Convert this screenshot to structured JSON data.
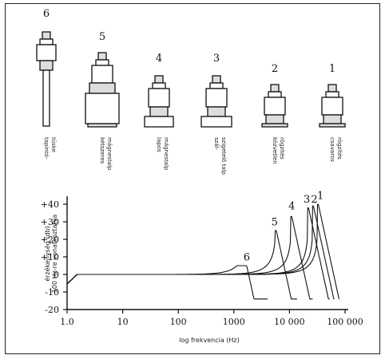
{
  "mountings": [
    {
      "number": "6",
      "caption": [
        "tapintó-",
        "tüske"
      ]
    },
    {
      "number": "5",
      "caption": [
        "kétszeres",
        "mágnestalp"
      ]
    },
    {
      "number": "4",
      "caption": [
        "lapos",
        "mágnestalp"
      ]
    },
    {
      "number": "3",
      "caption": [
        "szál-",
        "szigetelő talp"
      ]
    },
    {
      "number": "2",
      "caption": [
        "közvetlen",
        "rögzítés"
      ]
    },
    {
      "number": "1",
      "caption": [
        "csavaros",
        "rögzítés"
      ]
    }
  ],
  "chart_data": {
    "type": "line",
    "x_scale": "log",
    "xlim": [
      1,
      100000
    ],
    "ylim": [
      -20,
      40
    ],
    "x_ticks": [
      1,
      10,
      100,
      1000,
      10000,
      100000
    ],
    "x_tick_labels": [
      "1.0",
      "10",
      "100",
      "1000",
      "10 000",
      "100 000"
    ],
    "y_ticks": [
      40,
      30,
      20,
      10,
      0,
      -10,
      -20
    ],
    "y_tick_labels": [
      "+40",
      "+30",
      "+20",
      "+10",
      "0",
      "-10",
      "-20"
    ],
    "xlabel": "log frekvencia (Hz)",
    "ylabel": [
      "érzékenység (db)",
      "100 Hz-re vonatkoztatva"
    ],
    "series": [
      {
        "name": "6",
        "peak_freq": 1700,
        "peak_db": 5,
        "label_x": 1700,
        "label_y": 8
      },
      {
        "name": "5",
        "peak_freq": 5800,
        "peak_db": 25,
        "label_x": 5400,
        "label_y": 28
      },
      {
        "name": "4",
        "peak_freq": 11000,
        "peak_db": 33,
        "label_x": 11000,
        "label_y": 37
      },
      {
        "name": "3",
        "peak_freq": 22000,
        "peak_db": 38,
        "label_x": 20500,
        "label_y": 41
      },
      {
        "name": "2",
        "peak_freq": 27000,
        "peak_db": 39,
        "label_x": 28000,
        "label_y": 41
      },
      {
        "name": "1",
        "peak_freq": 33000,
        "peak_db": 40,
        "label_x": 36000,
        "label_y": 43
      }
    ]
  }
}
